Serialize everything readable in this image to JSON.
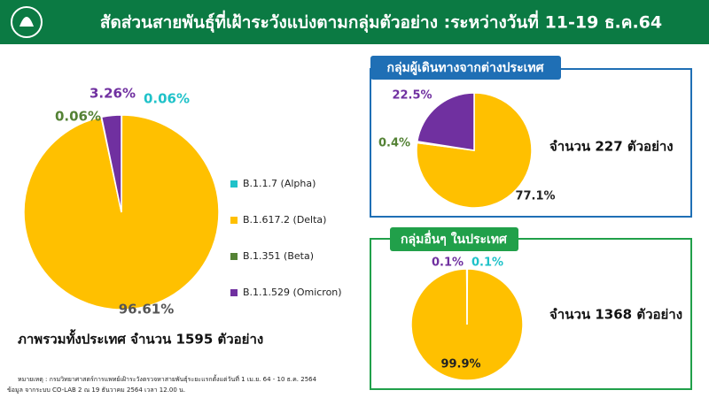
{
  "header": {
    "title": "สัดส่วนสายพันธุ์ที่เฝ้าระวังแบ่งตามกลุ่มตัวอย่าง :ระหว่างวันที่ 11-19 ธ.ค.64"
  },
  "chart_data": [
    {
      "type": "pie",
      "caption": "ภาพรวมทั้งประเทศ จำนวน 1595 ตัวอย่าง",
      "categories": [
        "B.1.1.7 (Alpha)",
        "B.1.617.2 (Delta)",
        "B.1.351 (Beta)",
        "B.1.1.529 (Omicron)"
      ],
      "values": [
        0.06,
        96.61,
        0.06,
        3.26
      ],
      "value_labels": [
        "0.06%",
        "96.61%",
        "0.06%",
        "3.26%"
      ],
      "colors": [
        "#1fc2c9",
        "#ffc000",
        "#548235",
        "#7030a0"
      ]
    },
    {
      "type": "pie",
      "title": "กลุ่มผู้เดินทางจากต่างประเทศ",
      "caption": "จำนวน 227 ตัวอย่าง",
      "values": [
        77.1,
        0.4,
        22.5
      ],
      "value_labels": [
        "77.1%",
        "0.4%",
        "22.5%"
      ],
      "colors": [
        "#ffc000",
        "#548235",
        "#7030a0"
      ]
    },
    {
      "type": "pie",
      "title": "กลุ่มอื่นๆ ในประเทศ",
      "caption": "จำนวน 1368 ตัวอย่าง",
      "values": [
        0.1,
        99.9,
        0.1
      ],
      "value_labels": [
        "0.1%",
        "99.9%",
        "0.1%"
      ],
      "colors": [
        "#1fc2c9",
        "#ffc000",
        "#7030a0"
      ]
    }
  ],
  "notes": [
    "หมายเหตุ : กรมวิทยาศาสตร์การแพทย์เฝ้าระวังตรวจหาสายพันธุ์ระยะแรกตั้งแต่วันที่ 1 เม.ย. 64 - 10 ธ.ค. 2564",
    "ข้อมูล จากระบบ CO-LAB 2 ณ 19 ธันวาคม 2564 เวลา 12.00 น."
  ]
}
